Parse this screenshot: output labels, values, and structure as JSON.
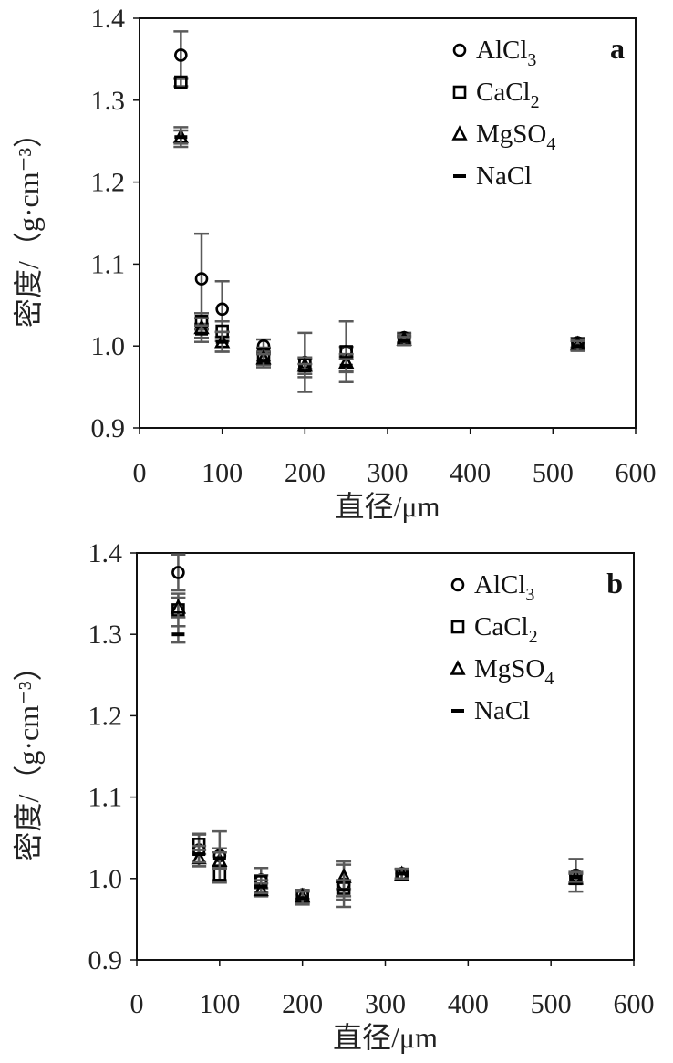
{
  "chart_data": [
    {
      "type": "scatter",
      "panel_label": "a",
      "xlabel": "直径/μm",
      "ylabel": "密度/（g·cm⁻³）",
      "xlim": [
        0,
        600
      ],
      "ylim": [
        0.9,
        1.4
      ],
      "xticks": [
        "0",
        "100",
        "200",
        "300",
        "400",
        "500",
        "600"
      ],
      "yticks": [
        "0.9",
        "1.0",
        "1.1",
        "1.2",
        "1.3",
        "1.4"
      ],
      "legend_position": "top-right",
      "series": [
        {
          "name": "AlCl3",
          "label_main": "AlCl",
          "label_sub": "3",
          "marker": "circle",
          "x": [
            50,
            75,
            100,
            150,
            200,
            250,
            320,
            530
          ],
          "y": [
            1.355,
            1.082,
            1.045,
            1.0,
            0.98,
            0.993,
            1.01,
            1.004
          ],
          "err": [
            0.029,
            0.055,
            0.034,
            0.008,
            0.036,
            0.037,
            0.006,
            0.006
          ]
        },
        {
          "name": "CaCl2",
          "label_main": "CaCl",
          "label_sub": "2",
          "marker": "square",
          "x": [
            50,
            75,
            100,
            150,
            200,
            250,
            320,
            530
          ],
          "y": [
            1.322,
            1.03,
            1.018,
            0.99,
            0.978,
            0.993,
            1.008,
            1.002
          ],
          "err": [
            0.005,
            0.01,
            0.012,
            0.008,
            0.006,
            0.006,
            0.004,
            0.004
          ]
        },
        {
          "name": "MgSO4",
          "label_main": "MgSO",
          "label_sub": "4",
          "marker": "triangle",
          "x": [
            50,
            75,
            100,
            150,
            200,
            250,
            320,
            530
          ],
          "y": [
            1.255,
            1.022,
            1.005,
            0.985,
            0.976,
            0.98,
            1.008,
            1.002
          ],
          "err": [
            0.012,
            0.012,
            0.012,
            0.008,
            0.01,
            0.01,
            0.006,
            0.006
          ]
        },
        {
          "name": "NaCl",
          "label_main": "NaCl",
          "label_sub": "",
          "marker": "dash",
          "x": [
            50,
            75,
            100,
            150,
            200,
            250,
            320,
            530
          ],
          "y": [
            1.255,
            1.015,
            1.005,
            0.982,
            0.97,
            0.976,
            1.006,
            1.0
          ],
          "err": [
            0.008,
            0.01,
            0.012,
            0.008,
            0.008,
            0.008,
            0.005,
            0.006
          ]
        }
      ]
    },
    {
      "type": "scatter",
      "panel_label": "b",
      "xlabel": "直径/μm",
      "ylabel": "密度/（g·cm⁻³）",
      "xlim": [
        0,
        600
      ],
      "ylim": [
        0.9,
        1.4
      ],
      "xticks": [
        "0",
        "100",
        "200",
        "300",
        "400",
        "500",
        "600"
      ],
      "yticks": [
        "0.9",
        "1.0",
        "1.1",
        "1.2",
        "1.3",
        "1.4"
      ],
      "legend_position": "top-right",
      "series": [
        {
          "name": "AlCl3",
          "label_main": "AlCl",
          "label_sub": "3",
          "marker": "circle",
          "x": [
            50,
            75,
            100,
            150,
            200,
            250,
            320,
            530
          ],
          "y": [
            1.376,
            1.035,
            1.028,
            0.998,
            0.98,
            0.993,
            1.006,
            1.004
          ],
          "err": [
            0.022,
            0.02,
            0.03,
            0.015,
            0.005,
            0.028,
            0.006,
            0.02
          ]
        },
        {
          "name": "CaCl2",
          "label_main": "CaCl",
          "label_sub": "2",
          "marker": "square",
          "x": [
            50,
            75,
            100,
            150,
            200,
            250,
            320,
            530
          ],
          "y": [
            1.33,
            1.042,
            1.005,
            0.996,
            0.978,
            0.988,
            1.005,
            1.0
          ],
          "err": [
            0.02,
            0.012,
            0.01,
            0.008,
            0.006,
            0.01,
            0.006,
            0.006
          ]
        },
        {
          "name": "MgSO4",
          "label_main": "MgSO",
          "label_sub": "4",
          "marker": "triangle",
          "x": [
            50,
            75,
            100,
            150,
            200,
            250,
            320,
            530
          ],
          "y": [
            1.333,
            1.025,
            1.022,
            0.986,
            0.978,
            1.002,
            1.005,
            1.0
          ],
          "err": [
            0.012,
            0.01,
            0.01,
            0.008,
            0.008,
            0.015,
            0.006,
            0.006
          ]
        },
        {
          "name": "NaCl",
          "label_main": "NaCl",
          "label_sub": "",
          "marker": "dash",
          "x": [
            50,
            75,
            100,
            150,
            200,
            250,
            320,
            530
          ],
          "y": [
            1.3,
            1.03,
            1.025,
            0.99,
            0.976,
            0.986,
            1.006,
            1.002
          ],
          "err": [
            0.01,
            0.01,
            0.012,
            0.008,
            0.008,
            0.012,
            0.006,
            0.006
          ]
        }
      ]
    }
  ]
}
